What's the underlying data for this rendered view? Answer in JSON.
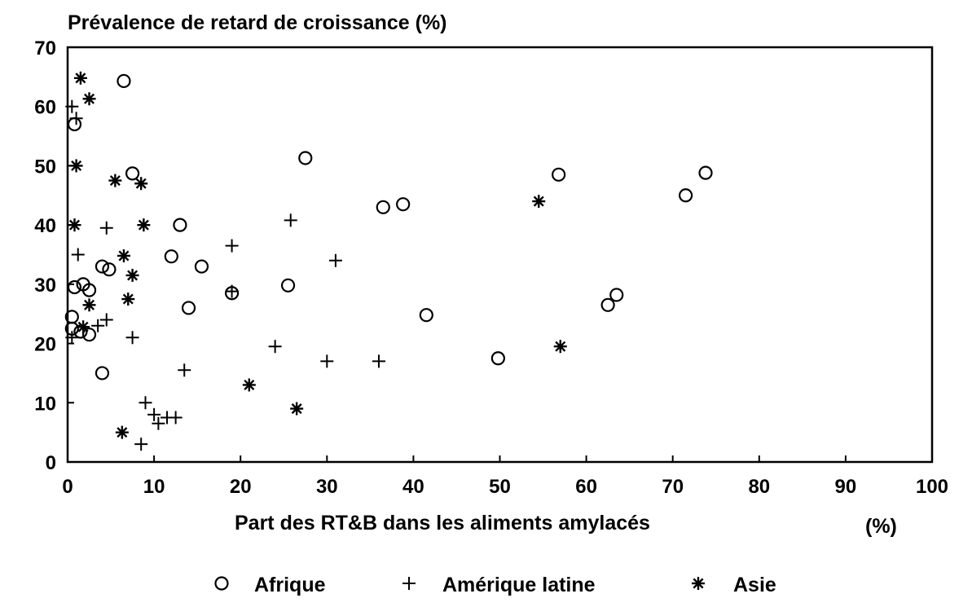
{
  "chart_data": {
    "type": "scatter",
    "title": "Prévalence de retard de croissance (%)",
    "xlabel": "Part des RT&B dans les aliments amylacés",
    "xunit": "(%)",
    "xlim": [
      0,
      100
    ],
    "ylim": [
      0,
      70
    ],
    "x_ticks": [
      0,
      10,
      20,
      30,
      40,
      50,
      60,
      70,
      80,
      90,
      100
    ],
    "y_ticks": [
      0,
      10,
      20,
      30,
      40,
      50,
      60,
      70
    ],
    "grid": false,
    "legend_position": "bottom",
    "series": [
      {
        "name": "Afrique",
        "marker": "circle",
        "points": [
          [
            6.5,
            64.3
          ],
          [
            0.8,
            57.0
          ],
          [
            0.5,
            24.5
          ],
          [
            0.5,
            22.5
          ],
          [
            0.8,
            29.5
          ],
          [
            1.8,
            30.0
          ],
          [
            1.5,
            22.0
          ],
          [
            2.5,
            29.0
          ],
          [
            2.5,
            21.5
          ],
          [
            4.0,
            33.0
          ],
          [
            4.8,
            32.5
          ],
          [
            4.0,
            15.0
          ],
          [
            7.5,
            48.7
          ],
          [
            12.0,
            34.7
          ],
          [
            13.0,
            40.0
          ],
          [
            14.0,
            26.0
          ],
          [
            15.5,
            33.0
          ],
          [
            19.0,
            28.5
          ],
          [
            25.5,
            29.8
          ],
          [
            27.5,
            51.3
          ],
          [
            36.5,
            43.0
          ],
          [
            38.8,
            43.5
          ],
          [
            41.5,
            24.8
          ],
          [
            49.8,
            17.5
          ],
          [
            56.8,
            48.5
          ],
          [
            62.5,
            26.5
          ],
          [
            63.5,
            28.2
          ],
          [
            71.5,
            45.0
          ],
          [
            73.8,
            48.8
          ]
        ]
      },
      {
        "name": "Amérique latine",
        "marker": "plus",
        "points": [
          [
            0.5,
            60.0
          ],
          [
            1.0,
            58.0
          ],
          [
            1.2,
            35.0
          ],
          [
            0.5,
            21.0
          ],
          [
            3.5,
            23.0
          ],
          [
            4.5,
            24.0
          ],
          [
            4.5,
            39.5
          ],
          [
            7.5,
            21.0
          ],
          [
            9.0,
            10.0
          ],
          [
            10.0,
            8.0
          ],
          [
            10.5,
            6.5
          ],
          [
            11.5,
            7.5
          ],
          [
            12.5,
            7.5
          ],
          [
            8.5,
            3.0
          ],
          [
            13.5,
            15.5
          ],
          [
            19.0,
            36.5
          ],
          [
            19.0,
            28.8
          ],
          [
            24.0,
            19.5
          ],
          [
            25.8,
            40.8
          ],
          [
            30.0,
            17.0
          ],
          [
            31.0,
            34.0
          ],
          [
            36.0,
            17.0
          ]
        ]
      },
      {
        "name": "Asie",
        "marker": "asterisk",
        "points": [
          [
            1.5,
            64.8
          ],
          [
            2.5,
            61.3
          ],
          [
            1.0,
            50.0
          ],
          [
            0.8,
            40.0
          ],
          [
            1.8,
            22.8
          ],
          [
            2.5,
            26.5
          ],
          [
            5.5,
            47.5
          ],
          [
            8.5,
            47.0
          ],
          [
            8.8,
            40.0
          ],
          [
            6.5,
            34.8
          ],
          [
            7.5,
            31.5
          ],
          [
            7.0,
            27.5
          ],
          [
            6.3,
            5.0
          ],
          [
            21.0,
            13.0
          ],
          [
            26.5,
            9.0
          ],
          [
            54.5,
            44.0
          ],
          [
            57.0,
            19.5
          ]
        ]
      }
    ]
  }
}
